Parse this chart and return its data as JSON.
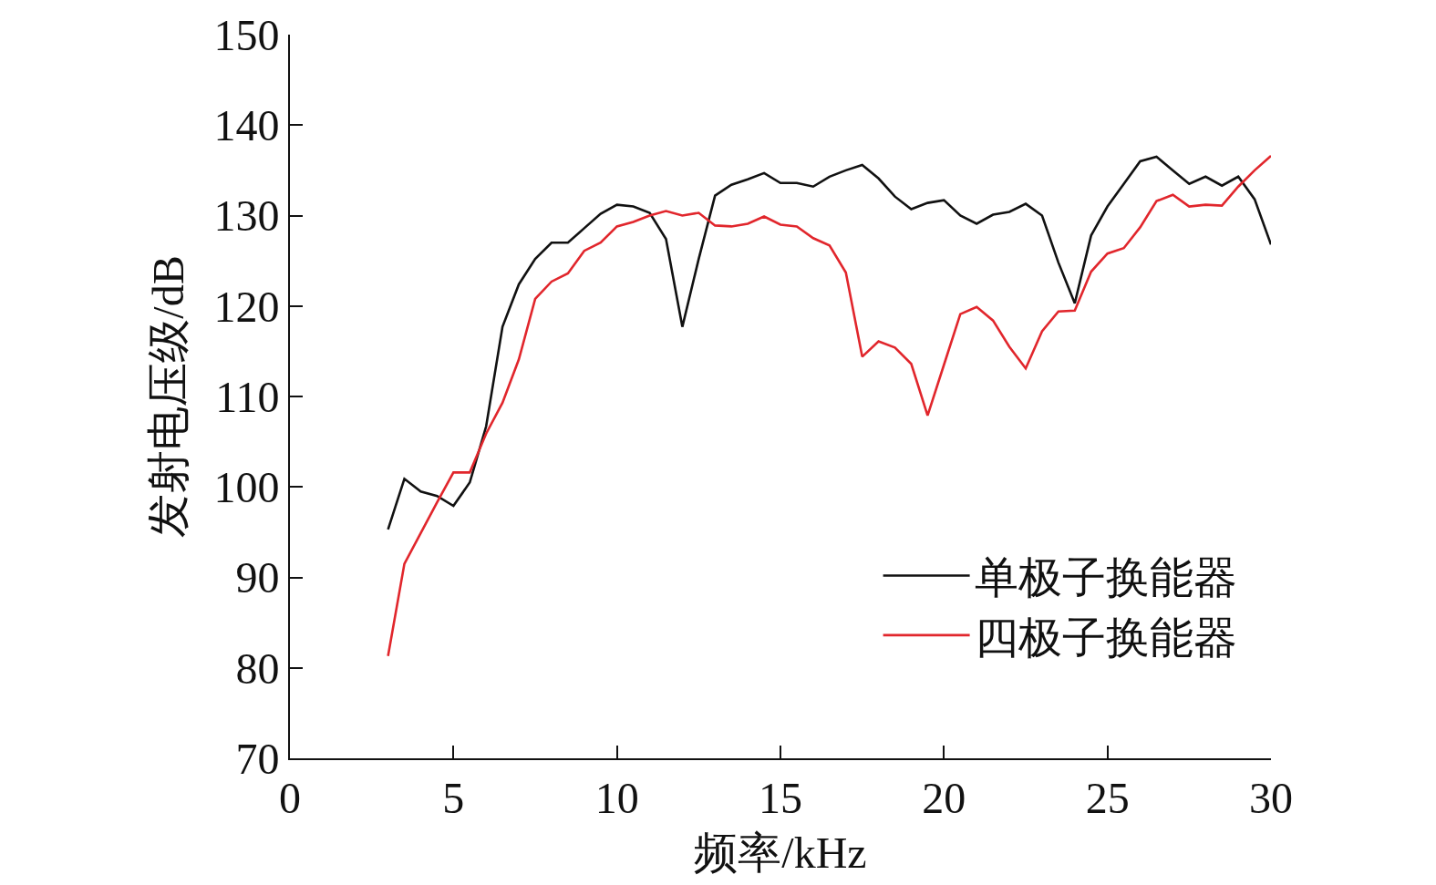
{
  "chart_data": {
    "type": "line",
    "xlabel": "频率/kHz",
    "ylabel": "发射电压级/dB",
    "x": [
      3,
      3.5,
      4,
      4.5,
      5,
      5.5,
      6,
      6.5,
      7,
      7.5,
      8,
      8.5,
      9,
      9.5,
      10,
      10.5,
      11,
      11.5,
      12,
      12.5,
      13,
      13.5,
      14,
      14.5,
      15,
      15.5,
      16,
      16.5,
      17,
      17.5,
      18,
      18.5,
      19,
      19.5,
      20,
      20.5,
      21,
      21.5,
      22,
      22.5,
      23,
      23.5,
      24,
      24.5,
      25,
      25.5,
      26,
      26.5,
      27,
      27.5,
      28,
      28.5,
      29,
      29.5,
      30
    ],
    "series": [
      {
        "name": "单极子换能器",
        "color": "#111111",
        "values": [
          95.3,
          100.9,
          99.5,
          99.0,
          97.9,
          100.5,
          106.7,
          117.7,
          122.4,
          125.2,
          127.0,
          127.0,
          128.6,
          130.2,
          131.2,
          131.0,
          130.3,
          127.4,
          117.7,
          125.2,
          132.2,
          133.4,
          134.0,
          134.7,
          133.6,
          133.6,
          133.2,
          134.3,
          135.0,
          135.6,
          134.1,
          132.1,
          130.7,
          131.4,
          131.7,
          130.0,
          129.1,
          130.1,
          130.4,
          131.3,
          130.0,
          124.8,
          120.3,
          127.8,
          131.0,
          133.5,
          136.0,
          136.5,
          135.0,
          133.5,
          134.3,
          133.3,
          134.3,
          131.8,
          126.8
        ]
      },
      {
        "name": "四极子换能器",
        "color": "#e1262c",
        "values": [
          81.3,
          91.5,
          94.9,
          98.3,
          101.6,
          101.6,
          105.9,
          109.3,
          114.1,
          120.8,
          122.7,
          123.6,
          126.1,
          127.0,
          128.8,
          129.3,
          130.0,
          130.5,
          130.0,
          130.3,
          128.9,
          128.8,
          129.1,
          129.9,
          129.0,
          128.8,
          127.5,
          126.7,
          123.7,
          114.4,
          116.1,
          115.4,
          113.6,
          107.9,
          113.5,
          119.1,
          119.9,
          118.4,
          115.5,
          113.1,
          117.2,
          119.4,
          119.5,
          123.8,
          125.8,
          126.4,
          128.7,
          131.6,
          132.3,
          131.0,
          131.2,
          131.1,
          133.2,
          135.0,
          136.6
        ]
      }
    ],
    "xlim": [
      0,
      30
    ],
    "xticks": [
      0,
      5,
      10,
      15,
      20,
      25,
      30
    ],
    "ylim": [
      70,
      150
    ],
    "yticks": [
      70,
      80,
      90,
      100,
      110,
      120,
      130,
      140,
      150
    ],
    "legend": "bottom right",
    "line_style": "solid"
  }
}
